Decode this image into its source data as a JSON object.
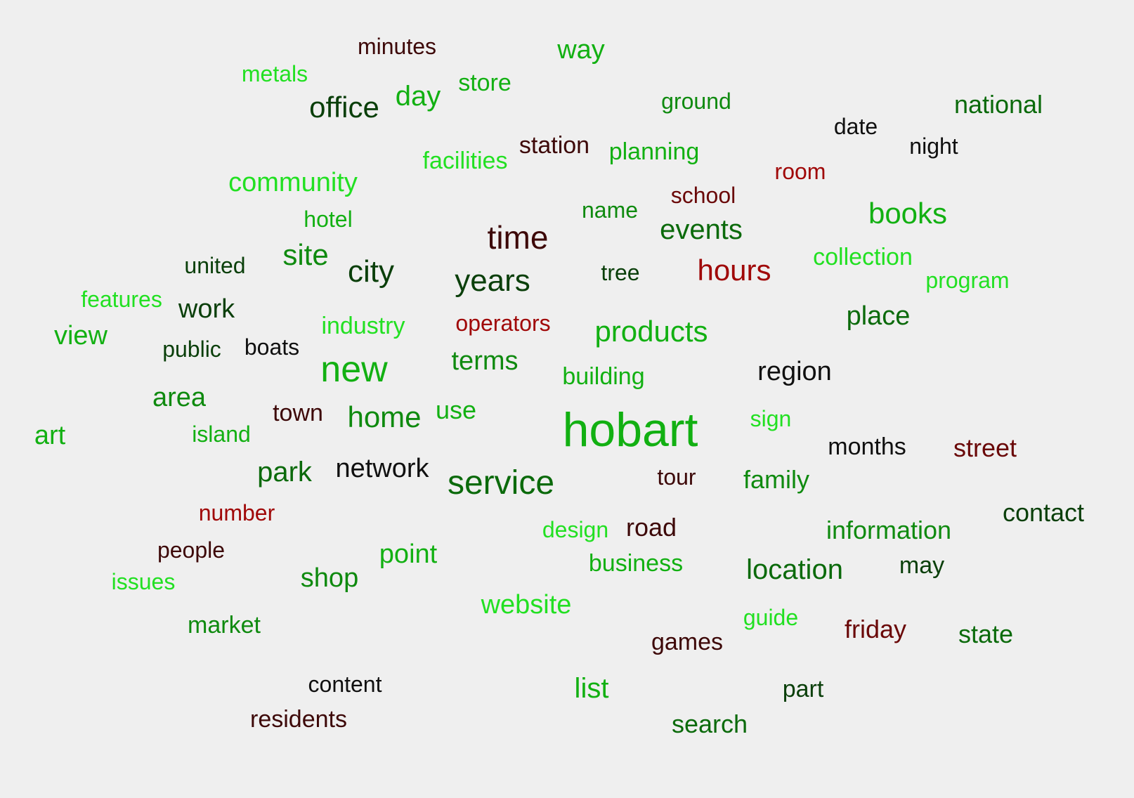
{
  "palette": {
    "bright_green": "#22e022",
    "mid_green": "#12b012",
    "green": "#0f8a0f",
    "dark_green": "#0b6a0b",
    "deep_green": "#0a3f0a",
    "near_black": "#101010",
    "dark_maroon": "#3d0808",
    "maroon": "#6a0808",
    "red": "#a00808"
  },
  "words": [
    {
      "text": "hobart",
      "color": "mid_green"
    },
    {
      "text": "service",
      "color": "dark_green"
    },
    {
      "text": "new",
      "color": "mid_green"
    },
    {
      "text": "time",
      "color": "dark_maroon"
    },
    {
      "text": "years",
      "color": "deep_green"
    },
    {
      "text": "city",
      "color": "deep_green"
    },
    {
      "text": "hours",
      "color": "red"
    },
    {
      "text": "products",
      "color": "mid_green"
    },
    {
      "text": "books",
      "color": "mid_green"
    },
    {
      "text": "home",
      "color": "green"
    },
    {
      "text": "office",
      "color": "deep_green"
    },
    {
      "text": "community",
      "color": "bright_green"
    },
    {
      "text": "events",
      "color": "dark_green"
    },
    {
      "text": "site",
      "color": "green"
    },
    {
      "text": "location",
      "color": "dark_green"
    },
    {
      "text": "network",
      "color": "near_black"
    },
    {
      "text": "park",
      "color": "dark_green"
    },
    {
      "text": "day",
      "color": "mid_green"
    },
    {
      "text": "website",
      "color": "bright_green"
    },
    {
      "text": "region",
      "color": "near_black"
    },
    {
      "text": "place",
      "color": "dark_green"
    },
    {
      "text": "street",
      "color": "maroon"
    },
    {
      "text": "terms",
      "color": "green"
    },
    {
      "text": "work",
      "color": "deep_green"
    },
    {
      "text": "area",
      "color": "green"
    },
    {
      "text": "way",
      "color": "mid_green"
    },
    {
      "text": "view",
      "color": "mid_green"
    },
    {
      "text": "art",
      "color": "mid_green"
    },
    {
      "text": "shop",
      "color": "green"
    },
    {
      "text": "point",
      "color": "mid_green"
    },
    {
      "text": "list",
      "color": "mid_green"
    },
    {
      "text": "information",
      "color": "green"
    },
    {
      "text": "contact",
      "color": "deep_green"
    },
    {
      "text": "friday",
      "color": "maroon"
    },
    {
      "text": "family",
      "color": "green"
    },
    {
      "text": "national",
      "color": "dark_green"
    },
    {
      "text": "building",
      "color": "mid_green"
    },
    {
      "text": "planning",
      "color": "mid_green"
    },
    {
      "text": "station",
      "color": "dark_maroon"
    },
    {
      "text": "facilities",
      "color": "bright_green"
    },
    {
      "text": "industry",
      "color": "bright_green"
    },
    {
      "text": "operators",
      "color": "red"
    },
    {
      "text": "use",
      "color": "mid_green"
    },
    {
      "text": "town",
      "color": "dark_maroon"
    },
    {
      "text": "road",
      "color": "dark_maroon"
    },
    {
      "text": "state",
      "color": "dark_green"
    },
    {
      "text": "search",
      "color": "dark_green"
    },
    {
      "text": "games",
      "color": "dark_maroon"
    },
    {
      "text": "market",
      "color": "green"
    },
    {
      "text": "residents",
      "color": "dark_maroon"
    },
    {
      "text": "part",
      "color": "deep_green"
    },
    {
      "text": "business",
      "color": "mid_green"
    },
    {
      "text": "months",
      "color": "near_black"
    },
    {
      "text": "may",
      "color": "deep_green"
    },
    {
      "text": "collection",
      "color": "bright_green"
    },
    {
      "text": "program",
      "color": "bright_green"
    },
    {
      "text": "store",
      "color": "mid_green"
    },
    {
      "text": "ground",
      "color": "green"
    },
    {
      "text": "minutes",
      "color": "dark_maroon"
    },
    {
      "text": "metals",
      "color": "bright_green"
    },
    {
      "text": "room",
      "color": "red"
    },
    {
      "text": "school",
      "color": "maroon"
    },
    {
      "text": "name",
      "color": "green"
    },
    {
      "text": "hotel",
      "color": "mid_green"
    },
    {
      "text": "united",
      "color": "deep_green"
    },
    {
      "text": "tree",
      "color": "deep_green"
    },
    {
      "text": "features",
      "color": "bright_green"
    },
    {
      "text": "public",
      "color": "deep_green"
    },
    {
      "text": "boats",
      "color": "near_black"
    },
    {
      "text": "island",
      "color": "mid_green"
    },
    {
      "text": "sign",
      "color": "bright_green"
    },
    {
      "text": "tour",
      "color": "dark_maroon"
    },
    {
      "text": "number",
      "color": "red"
    },
    {
      "text": "design",
      "color": "bright_green"
    },
    {
      "text": "people",
      "color": "dark_maroon"
    },
    {
      "text": "issues",
      "color": "bright_green"
    },
    {
      "text": "guide",
      "color": "bright_green"
    },
    {
      "text": "content",
      "color": "near_black"
    },
    {
      "text": "date",
      "color": "near_black"
    },
    {
      "text": "night",
      "color": "near_black"
    }
  ]
}
